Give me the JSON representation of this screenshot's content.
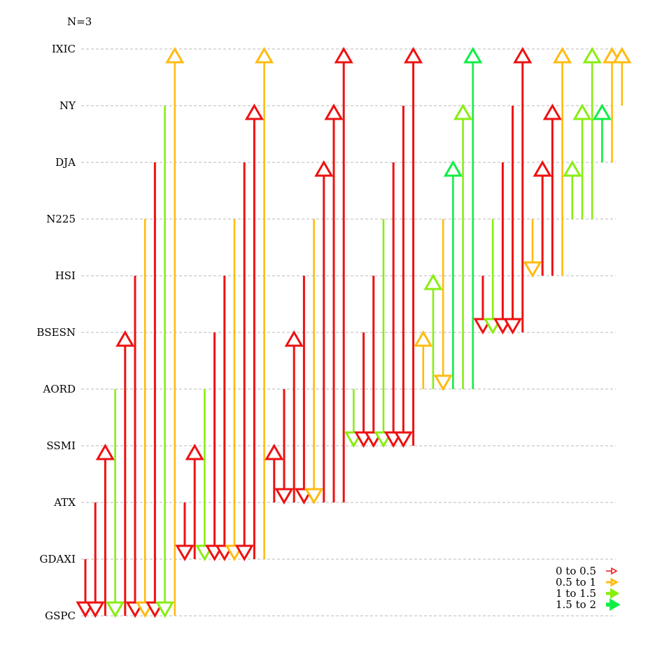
{
  "chart_data": {
    "type": "arrow-network",
    "annotation": "N=3",
    "levels": [
      "GSPC",
      "GDAXI",
      "ATX",
      "SSMI",
      "AORD",
      "BSESN",
      "HSI",
      "N225",
      "DJA",
      "NY",
      "IXIC"
    ],
    "legend": {
      "placement": "bottom-right",
      "entries": [
        {
          "label": "0  to  0.5",
          "color": "#ee1111"
        },
        {
          "label": "0.5  to  1",
          "color": "#ffbb11"
        },
        {
          "label": "1  to  1.5",
          "color": "#88ee11"
        },
        {
          "label": "1.5  to  2",
          "color": "#11ee44"
        }
      ]
    },
    "groups": [
      {
        "level": "GSPC",
        "arrows": [
          {
            "to": "GDAXI",
            "bin": 0,
            "dir": "down"
          },
          {
            "to": "ATX",
            "bin": 0,
            "dir": "down"
          },
          {
            "to": "SSMI",
            "bin": 0,
            "dir": "up"
          },
          {
            "to": "AORD",
            "bin": 2,
            "dir": "down"
          },
          {
            "to": "BSESN",
            "bin": 0,
            "dir": "up"
          },
          {
            "to": "HSI",
            "bin": 0,
            "dir": "down"
          },
          {
            "to": "N225",
            "bin": 1,
            "dir": "down"
          },
          {
            "to": "DJA",
            "bin": 0,
            "dir": "down"
          },
          {
            "to": "NY",
            "bin": 2,
            "dir": "down"
          },
          {
            "to": "IXIC",
            "bin": 1,
            "dir": "up"
          }
        ]
      },
      {
        "level": "GDAXI",
        "arrows": [
          {
            "to": "ATX",
            "bin": 0,
            "dir": "down"
          },
          {
            "to": "SSMI",
            "bin": 0,
            "dir": "up"
          },
          {
            "to": "AORD",
            "bin": 2,
            "dir": "down"
          },
          {
            "to": "BSESN",
            "bin": 0,
            "dir": "down"
          },
          {
            "to": "HSI",
            "bin": 0,
            "dir": "down"
          },
          {
            "to": "N225",
            "bin": 1,
            "dir": "down"
          },
          {
            "to": "DJA",
            "bin": 0,
            "dir": "down"
          },
          {
            "to": "NY",
            "bin": 0,
            "dir": "up"
          },
          {
            "to": "IXIC",
            "bin": 1,
            "dir": "up"
          }
        ]
      },
      {
        "level": "ATX",
        "arrows": [
          {
            "to": "SSMI",
            "bin": 0,
            "dir": "up"
          },
          {
            "to": "AORD",
            "bin": 0,
            "dir": "down"
          },
          {
            "to": "BSESN",
            "bin": 0,
            "dir": "up"
          },
          {
            "to": "HSI",
            "bin": 0,
            "dir": "down"
          },
          {
            "to": "N225",
            "bin": 1,
            "dir": "down"
          },
          {
            "to": "DJA",
            "bin": 0,
            "dir": "up"
          },
          {
            "to": "NY",
            "bin": 0,
            "dir": "up"
          },
          {
            "to": "IXIC",
            "bin": 0,
            "dir": "up"
          }
        ]
      },
      {
        "level": "SSMI",
        "arrows": [
          {
            "to": "AORD",
            "bin": 2,
            "dir": "down"
          },
          {
            "to": "BSESN",
            "bin": 0,
            "dir": "down"
          },
          {
            "to": "HSI",
            "bin": 0,
            "dir": "down"
          },
          {
            "to": "N225",
            "bin": 2,
            "dir": "down"
          },
          {
            "to": "DJA",
            "bin": 0,
            "dir": "down"
          },
          {
            "to": "NY",
            "bin": 0,
            "dir": "down"
          },
          {
            "to": "IXIC",
            "bin": 0,
            "dir": "up"
          }
        ]
      },
      {
        "level": "AORD",
        "arrows": [
          {
            "to": "BSESN",
            "bin": 1,
            "dir": "up"
          },
          {
            "to": "HSI",
            "bin": 2,
            "dir": "up"
          },
          {
            "to": "N225",
            "bin": 1,
            "dir": "down"
          },
          {
            "to": "DJA",
            "bin": 3,
            "dir": "up"
          },
          {
            "to": "NY",
            "bin": 2,
            "dir": "up"
          },
          {
            "to": "IXIC",
            "bin": 3,
            "dir": "up"
          }
        ]
      },
      {
        "level": "BSESN",
        "arrows": [
          {
            "to": "HSI",
            "bin": 0,
            "dir": "down"
          },
          {
            "to": "N225",
            "bin": 2,
            "dir": "down"
          },
          {
            "to": "DJA",
            "bin": 0,
            "dir": "down"
          },
          {
            "to": "NY",
            "bin": 0,
            "dir": "down"
          },
          {
            "to": "IXIC",
            "bin": 0,
            "dir": "up"
          }
        ]
      },
      {
        "level": "HSI",
        "arrows": [
          {
            "to": "N225",
            "bin": 1,
            "dir": "down"
          },
          {
            "to": "DJA",
            "bin": 0,
            "dir": "up"
          },
          {
            "to": "NY",
            "bin": 0,
            "dir": "up"
          },
          {
            "to": "IXIC",
            "bin": 1,
            "dir": "up"
          }
        ]
      },
      {
        "level": "N225",
        "arrows": [
          {
            "to": "DJA",
            "bin": 2,
            "dir": "up"
          },
          {
            "to": "NY",
            "bin": 2,
            "dir": "up"
          },
          {
            "to": "IXIC",
            "bin": 2,
            "dir": "up"
          }
        ]
      },
      {
        "level": "DJA",
        "arrows": [
          {
            "to": "NY",
            "bin": 3,
            "dir": "up"
          },
          {
            "to": "IXIC",
            "bin": 1,
            "dir": "up"
          }
        ]
      },
      {
        "level": "NY",
        "arrows": [
          {
            "to": "IXIC",
            "bin": 1,
            "dir": "up"
          }
        ]
      }
    ]
  }
}
